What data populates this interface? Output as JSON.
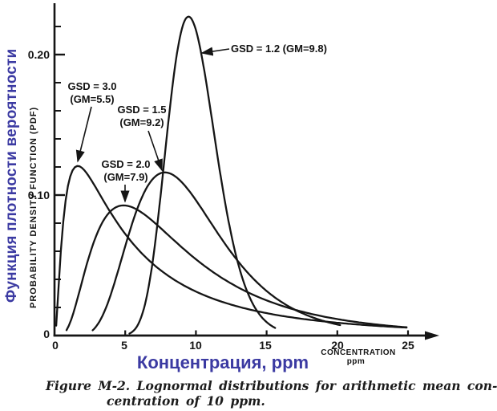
{
  "colors": {
    "accent_blue": "#3b3aa2",
    "ink": "#151515"
  },
  "y_axis": {
    "label_ru": "Функция плотности вероятности",
    "label_en": "PROBABILITY DENSITY FUNCTION (PDF)",
    "tick_labels": [
      "0.20",
      "0.10",
      "0"
    ]
  },
  "x_axis": {
    "label_ru": "Концентрация, ppm",
    "label_en_line1": "CONCENTRATION",
    "label_en_line2": "ppm",
    "tick_labels": [
      "0",
      "5",
      "10",
      "15",
      "20",
      "25"
    ]
  },
  "caption": {
    "line1": "Figure M-2. Lognormal distributions for arithmetic mean con-",
    "line2": "centration of 10 ppm."
  },
  "chart_data": {
    "type": "line",
    "title": "Lognormal distributions for arithmetic mean concentration of 10 ppm",
    "xlabel": "Концентрация, ppm (CONCENTRATION, ppm)",
    "ylabel": "Функция плотности вероятности (PROBABILITY DENSITY FUNCTION, PDF)",
    "xlim": [
      0,
      27
    ],
    "ylim": [
      0,
      0.235
    ],
    "x_ticks": [
      0,
      5,
      10,
      15,
      20,
      25
    ],
    "y_major_ticks": [
      0.1,
      0.2
    ],
    "y_minor_tick_step": 0.02,
    "y_minor_tick_max": 0.22,
    "grid": false,
    "curve_model": "lognormal_pdf(x; GM, GSD)",
    "series": [
      {
        "name": "GSD = 1.2 (GM=9.8)",
        "gsd": 1.2,
        "gm": 9.8,
        "x_start": 5.3,
        "x_end": 15.6,
        "peak": {
          "x": 9.5,
          "pdf": 0.227
        },
        "label_line1": "GSD = 1.2 (GM=9.8)",
        "label_line2": ""
      },
      {
        "name": "GSD = 1.5 (GM=9.2)",
        "gsd": 1.5,
        "gm": 9.2,
        "x_start": 2.7,
        "x_end": 20.2,
        "peak": {
          "x": 7.8,
          "pdf": 0.116
        },
        "label_line1": "GSD = 1.5",
        "label_line2": "(GM=9.2)"
      },
      {
        "name": "GSD = 2.0 (GM=7.9)",
        "gsd": 2.0,
        "gm": 7.9,
        "x_start": 0.85,
        "x_end": 24.9,
        "peak": {
          "x": 4.9,
          "pdf": 0.093
        },
        "label_line1": "GSD = 2.0",
        "label_line2": "(GM=7.9)"
      },
      {
        "name": "GSD = 3.0 (GM=5.5)",
        "gsd": 3.0,
        "gm": 5.5,
        "x_start": 0.12,
        "x_end": 24.9,
        "peak": {
          "x": 1.6,
          "pdf": 0.121
        },
        "label_line1": "GSD = 3.0",
        "label_line2": "(GM=5.5)"
      }
    ]
  }
}
